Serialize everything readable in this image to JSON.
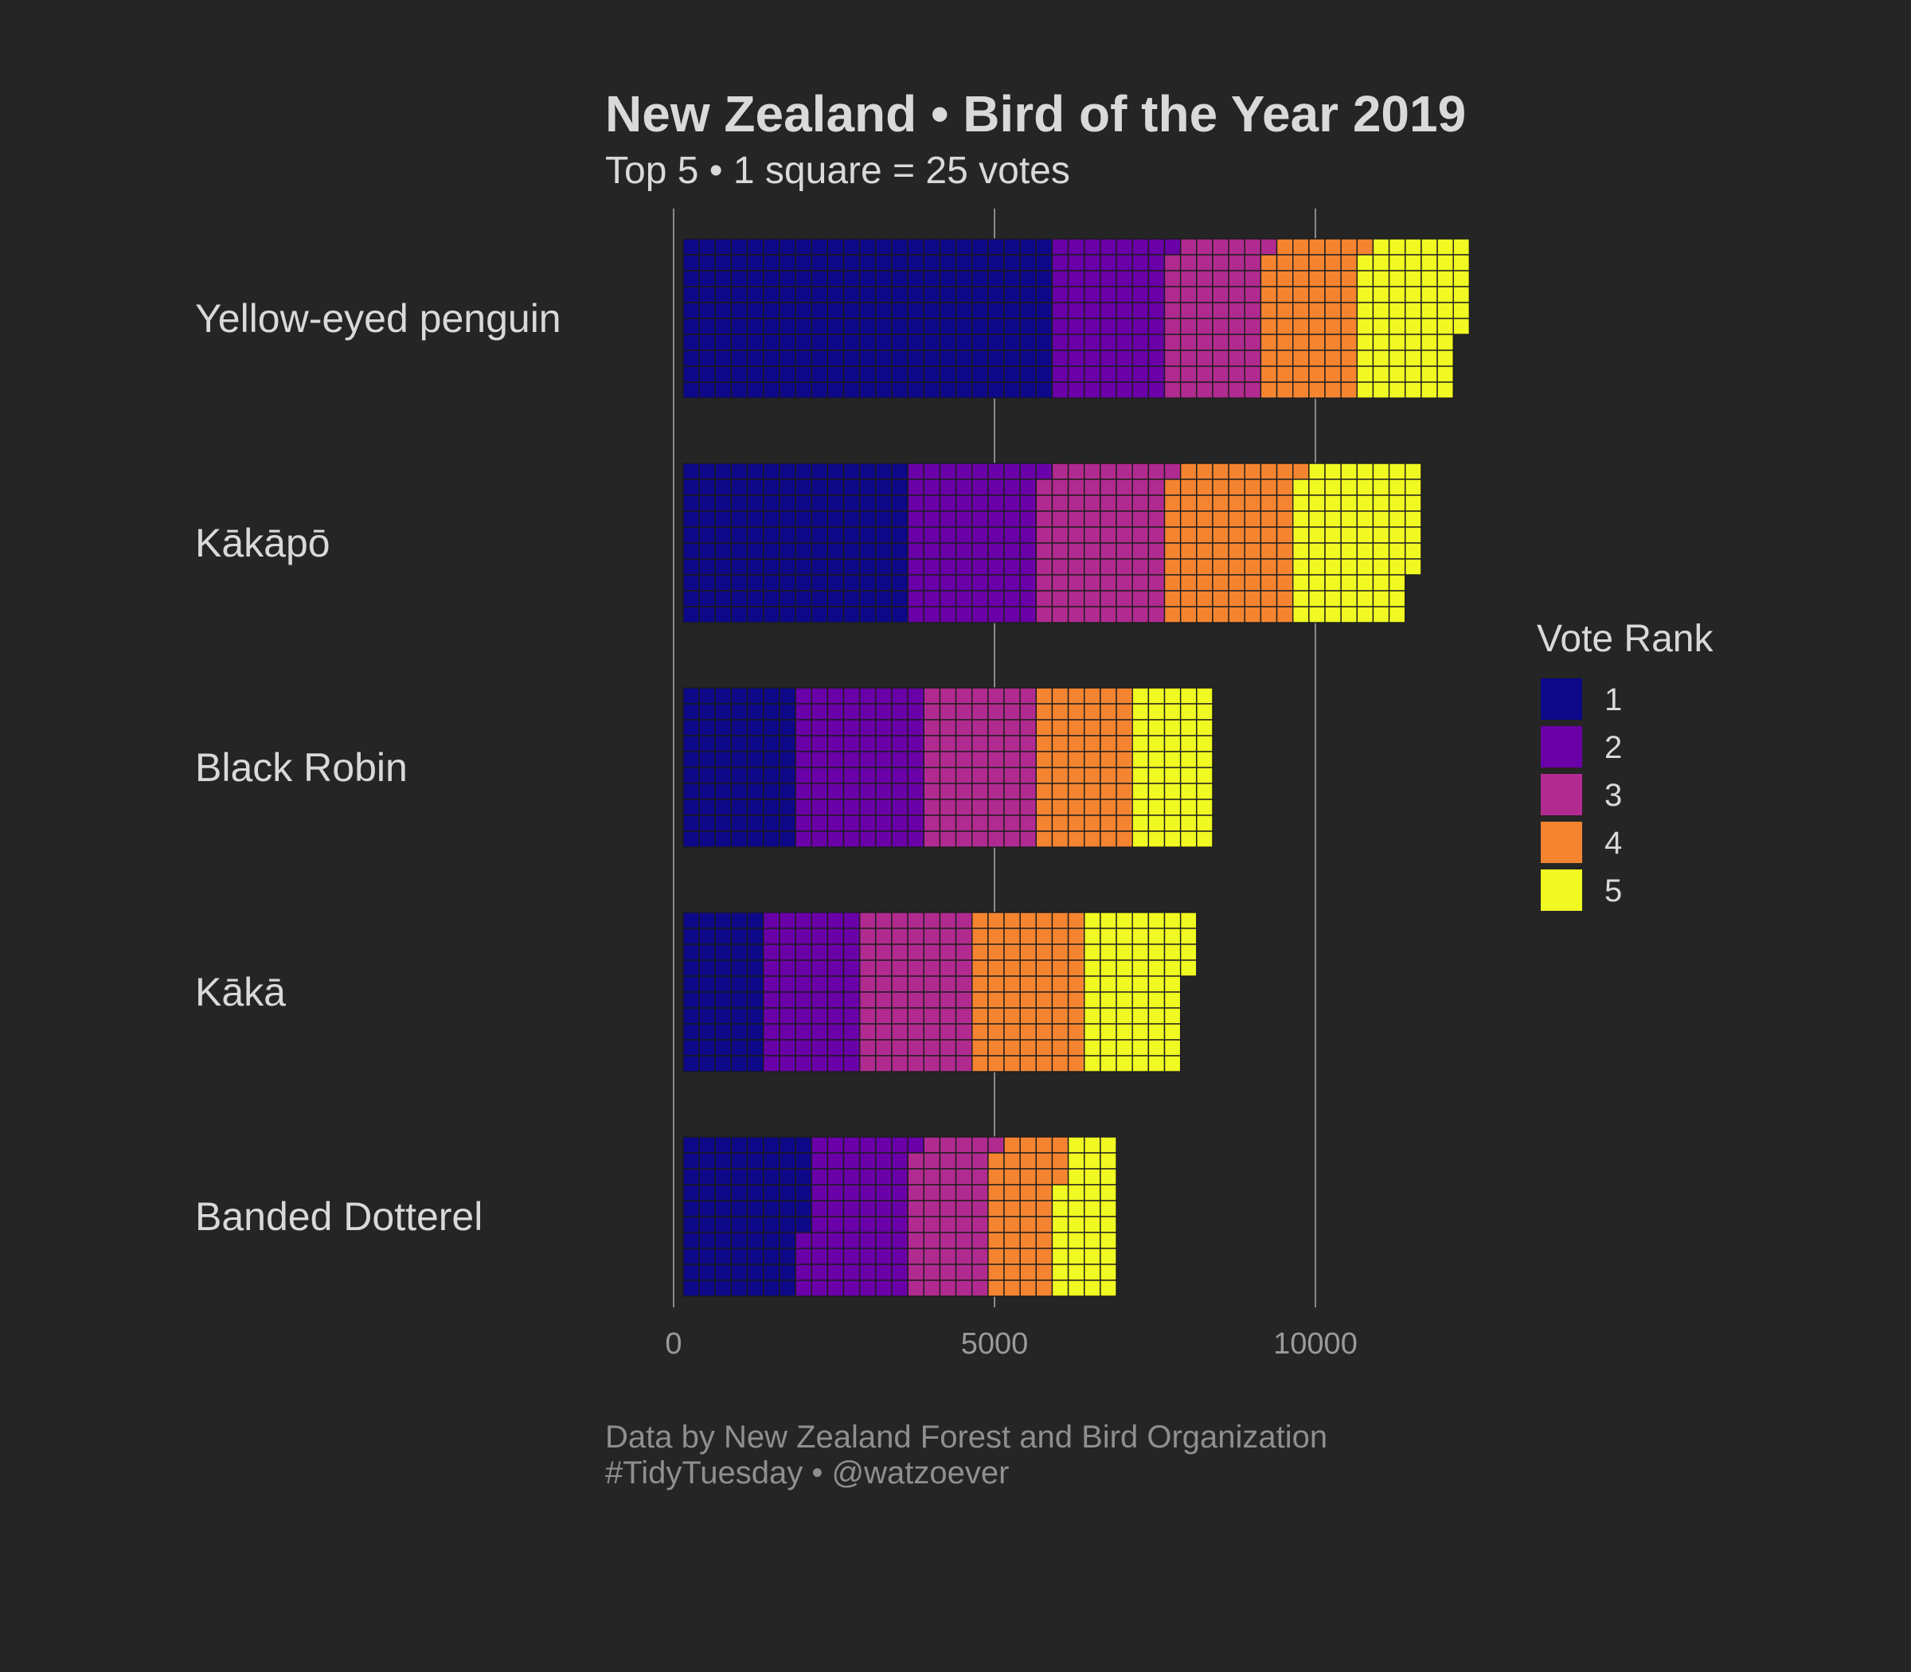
{
  "chart_data": {
    "type": "bar",
    "orientation": "horizontal",
    "stacked": true,
    "title": "New Zealand • Bird of the Year 2019",
    "subtitle": "Top 5 • 1 square = 25 votes",
    "caption_lines": [
      "Data by New Zealand Forest and Bird Organization",
      "#TidyTuesday • @watzoever"
    ],
    "categories": [
      "Yellow-eyed penguin",
      "Kākāpō",
      "Black Robin",
      "Kākā",
      "Banded Dotterel"
    ],
    "series": [
      {
        "name": "1",
        "color": "#0D0887",
        "values": [
          5750,
          3500,
          1750,
          1250,
          1900
        ]
      },
      {
        "name": "2",
        "color": "#6A00A8",
        "values": [
          1775,
          2025,
          2000,
          1500,
          1625
        ]
      },
      {
        "name": "3",
        "color": "#B12A90",
        "values": [
          1500,
          2000,
          1750,
          1750,
          1250
        ]
      },
      {
        "name": "4",
        "color": "#F48430",
        "values": [
          1500,
          2000,
          1500,
          1750,
          1050
        ]
      },
      {
        "name": "5",
        "color": "#F0F921",
        "values": [
          1625,
          1900,
          1250,
          1600,
          925
        ]
      }
    ],
    "legend": {
      "title": "Vote Rank",
      "position": "right"
    },
    "x_ticks": [
      "0",
      "5000",
      "10000"
    ],
    "x_tick_values": [
      0,
      5000,
      10000
    ],
    "xlim": [
      0,
      12500
    ],
    "grid": {
      "vertical": true,
      "horizontal": false
    },
    "squares_per_column": 10,
    "votes_per_square": 25
  }
}
